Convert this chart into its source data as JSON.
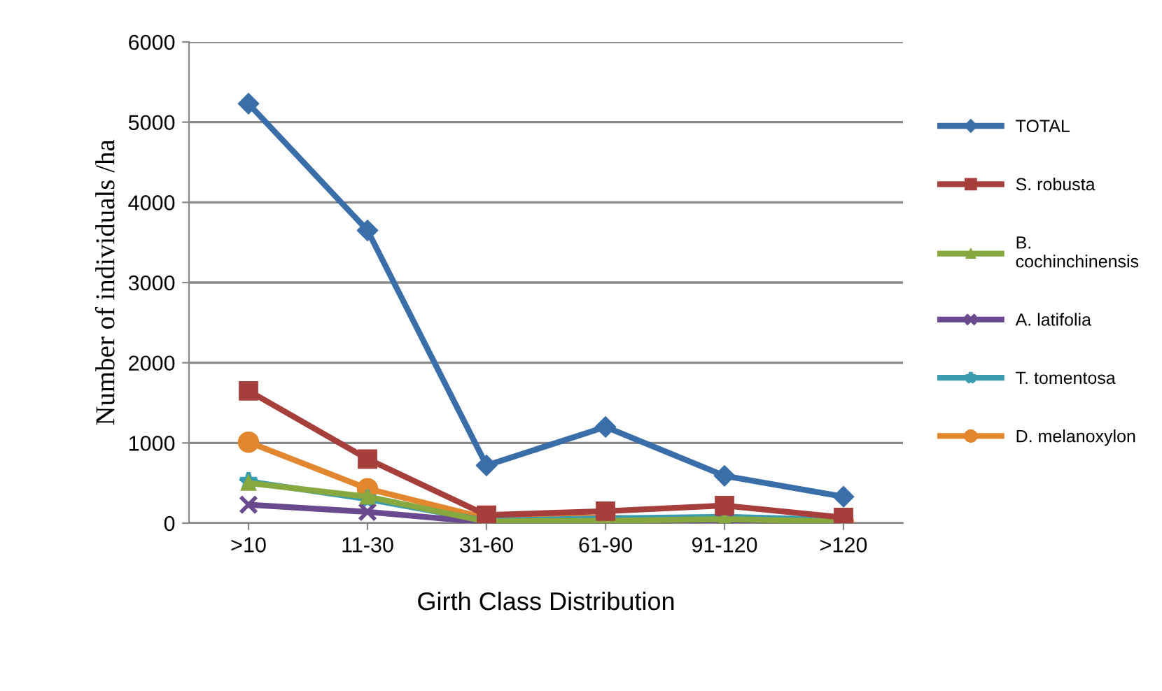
{
  "chart_data": {
    "type": "line",
    "xlabel": "Girth Class Distribution",
    "ylabel": "Number of individuals /ha",
    "categories": [
      ">10",
      "11-30",
      "31-60",
      "61-90",
      "91-120",
      ">120"
    ],
    "ylim": [
      0,
      6000
    ],
    "yticks": [
      0,
      1000,
      2000,
      3000,
      4000,
      5000,
      6000
    ],
    "grid": "y",
    "legend": "right",
    "series": [
      {
        "name": "TOTAL",
        "color": "#3a6ea8",
        "marker": "diamond",
        "values": [
          5230,
          3650,
          720,
          1200,
          590,
          330
        ]
      },
      {
        "name": "S. robusta",
        "color": "#a63f3c",
        "marker": "square",
        "values": [
          1650,
          800,
          100,
          150,
          220,
          70
        ]
      },
      {
        "name": "B. cochinchinensis",
        "color": "#86a83f",
        "marker": "triangle",
        "values": [
          500,
          330,
          20,
          30,
          50,
          20
        ]
      },
      {
        "name": "A. latifolia",
        "color": "#6a4a8e",
        "marker": "cross",
        "values": [
          230,
          140,
          10,
          20,
          20,
          10
        ]
      },
      {
        "name": "T. tomentosa",
        "color": "#3a9cb0",
        "marker": "star",
        "values": [
          520,
          300,
          30,
          60,
          80,
          40
        ]
      },
      {
        "name": "D. melanoxylon",
        "color": "#e3872e",
        "marker": "circle",
        "values": [
          1010,
          430,
          60,
          70,
          20,
          10
        ]
      }
    ]
  }
}
